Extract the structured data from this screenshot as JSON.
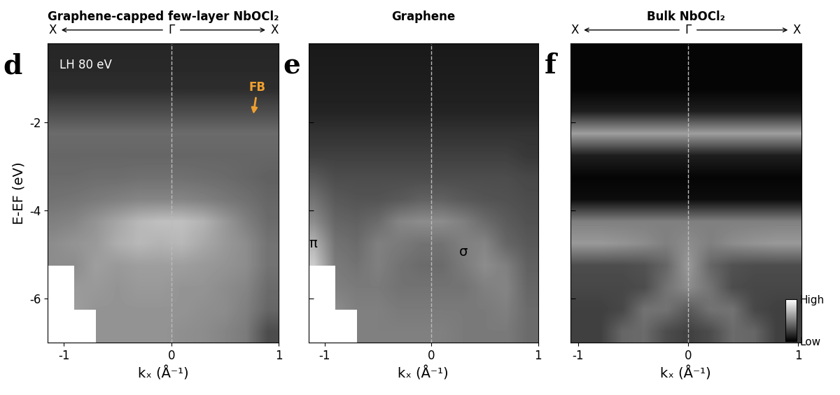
{
  "chart_data": [
    {
      "type": "heatmap",
      "panel": "d",
      "title": "Graphene-capped few-layer NbOCl₂",
      "path_labels": [
        "X",
        "Γ",
        "X"
      ],
      "x_label": "kₓ (Å⁻¹)",
      "y_label": "E-EF (eV)",
      "xlim": [
        -1.15,
        1.0
      ],
      "ylim": [
        -7,
        -0.2
      ],
      "xticks": [
        -1,
        0,
        1
      ],
      "yticks": [
        -6,
        -4,
        -2
      ],
      "color": "gray",
      "guide_line_k": 0,
      "annotations": [
        {
          "text": "LH 80 eV"
        },
        {
          "text": "FB"
        }
      ],
      "k": [
        -1.1,
        -0.9,
        -0.7,
        -0.5,
        -0.3,
        -0.1,
        0.1,
        0.3,
        0.5,
        0.7,
        0.9
      ],
      "energies": [
        -0.25,
        -0.75,
        -1.25,
        -1.75,
        -2.25,
        -2.75,
        -3.25,
        -3.75,
        -4.25,
        -4.75,
        -5.25,
        -5.75,
        -6.25,
        -6.75
      ],
      "intensity": [
        [
          0.15,
          0.15,
          0.15,
          0.15,
          0.15,
          0.15,
          0.15,
          0.15,
          0.15,
          0.15,
          0.15
        ],
        [
          0.16,
          0.16,
          0.16,
          0.16,
          0.16,
          0.16,
          0.16,
          0.16,
          0.16,
          0.16,
          0.16
        ],
        [
          0.18,
          0.18,
          0.18,
          0.18,
          0.18,
          0.18,
          0.18,
          0.18,
          0.18,
          0.18,
          0.18
        ],
        [
          0.3,
          0.3,
          0.3,
          0.3,
          0.3,
          0.3,
          0.3,
          0.3,
          0.3,
          0.3,
          0.3
        ],
        [
          0.42,
          0.42,
          0.42,
          0.42,
          0.42,
          0.42,
          0.42,
          0.42,
          0.42,
          0.42,
          0.42
        ],
        [
          0.4,
          0.4,
          0.4,
          0.4,
          0.4,
          0.4,
          0.4,
          0.4,
          0.4,
          0.4,
          0.4
        ],
        [
          0.42,
          0.42,
          0.43,
          0.43,
          0.44,
          0.44,
          0.44,
          0.43,
          0.42,
          0.4,
          0.38
        ],
        [
          0.45,
          0.46,
          0.48,
          0.5,
          0.52,
          0.52,
          0.52,
          0.5,
          0.47,
          0.44,
          0.4
        ],
        [
          0.5,
          0.52,
          0.58,
          0.65,
          0.72,
          0.75,
          0.75,
          0.7,
          0.6,
          0.5,
          0.42
        ],
        [
          0.55,
          0.58,
          0.6,
          0.68,
          0.72,
          0.7,
          0.72,
          0.66,
          0.6,
          0.55,
          0.45
        ],
        [
          0.55,
          0.55,
          0.62,
          0.6,
          0.62,
          0.62,
          0.62,
          0.6,
          0.58,
          0.55,
          0.45
        ],
        [
          null,
          0.6,
          0.6,
          0.58,
          0.6,
          0.6,
          0.58,
          0.58,
          0.55,
          0.52,
          0.42
        ],
        [
          null,
          0.62,
          0.58,
          0.58,
          0.58,
          0.58,
          0.58,
          0.56,
          0.55,
          0.5,
          0.4
        ],
        [
          null,
          null,
          0.58,
          0.58,
          0.58,
          0.58,
          0.56,
          0.55,
          0.52,
          0.48,
          0.3
        ]
      ]
    },
    {
      "type": "heatmap",
      "panel": "e",
      "title": "Graphene",
      "x_label": "kₓ (Å⁻¹)",
      "xlim": [
        -1.15,
        1.0
      ],
      "ylim": [
        -7,
        -0.2
      ],
      "xticks": [
        -1,
        0,
        1
      ],
      "yticks": [
        -6,
        -4,
        -2
      ],
      "tick_labels": "x",
      "color": "gray",
      "guide_line_k": 0,
      "annotations": [
        {
          "text": "π"
        },
        {
          "text": "σ"
        }
      ],
      "k": [
        -1.1,
        -0.9,
        -0.7,
        -0.5,
        -0.3,
        -0.1,
        0.1,
        0.3,
        0.5,
        0.7,
        0.9
      ],
      "energies": [
        -0.25,
        -0.75,
        -1.25,
        -1.75,
        -2.25,
        -2.75,
        -3.25,
        -3.75,
        -4.25,
        -4.75,
        -5.25,
        -5.75,
        -6.25,
        -6.75
      ],
      "intensity": [
        [
          0.1,
          0.1,
          0.1,
          0.1,
          0.1,
          0.1,
          0.1,
          0.1,
          0.1,
          0.1,
          0.1
        ],
        [
          0.11,
          0.11,
          0.11,
          0.11,
          0.11,
          0.11,
          0.11,
          0.11,
          0.11,
          0.11,
          0.11
        ],
        [
          0.12,
          0.12,
          0.12,
          0.12,
          0.12,
          0.12,
          0.12,
          0.12,
          0.12,
          0.12,
          0.12
        ],
        [
          0.14,
          0.14,
          0.14,
          0.14,
          0.14,
          0.14,
          0.14,
          0.14,
          0.14,
          0.14,
          0.14
        ],
        [
          0.2,
          0.2,
          0.2,
          0.2,
          0.2,
          0.2,
          0.2,
          0.2,
          0.2,
          0.2,
          0.2
        ],
        [
          0.25,
          0.25,
          0.25,
          0.25,
          0.25,
          0.25,
          0.25,
          0.25,
          0.25,
          0.25,
          0.22
        ],
        [
          0.35,
          0.3,
          0.3,
          0.3,
          0.3,
          0.3,
          0.3,
          0.3,
          0.3,
          0.3,
          0.28
        ],
        [
          0.45,
          0.35,
          0.33,
          0.33,
          0.35,
          0.38,
          0.38,
          0.35,
          0.33,
          0.32,
          0.3
        ],
        [
          0.55,
          0.4,
          0.38,
          0.42,
          0.52,
          0.55,
          0.55,
          0.5,
          0.42,
          0.36,
          0.32
        ],
        [
          0.7,
          0.45,
          0.42,
          0.5,
          0.48,
          0.45,
          0.45,
          0.5,
          0.52,
          0.4,
          0.35
        ],
        [
          0.8,
          0.48,
          0.45,
          0.5,
          0.45,
          0.42,
          0.42,
          0.48,
          0.55,
          0.5,
          0.38
        ],
        [
          null,
          0.5,
          0.48,
          0.48,
          0.45,
          0.45,
          0.45,
          0.45,
          0.5,
          0.52,
          0.4
        ],
        [
          null,
          0.55,
          0.5,
          0.5,
          0.48,
          0.48,
          0.48,
          0.48,
          0.48,
          0.5,
          0.42
        ],
        [
          null,
          null,
          0.5,
          0.5,
          0.5,
          0.5,
          0.5,
          0.48,
          0.48,
          0.48,
          0.42
        ]
      ]
    },
    {
      "type": "heatmap",
      "panel": "f",
      "title": "Bulk NbOCl₂",
      "path_labels": [
        "X",
        "Γ",
        "X"
      ],
      "x_label": "kₓ (Å⁻¹)",
      "xlim": [
        -1.07,
        1.03
      ],
      "ylim": [
        -7,
        -0.2
      ],
      "xticks": [
        -1,
        0,
        1
      ],
      "yticks": [
        -6,
        -4,
        -2
      ],
      "tick_labels": "x",
      "color": "gray",
      "guide_line_k": 0,
      "colorbar": {
        "range": [
          0,
          1
        ],
        "ticks": [
          {
            "value": 0,
            "label": "Low"
          },
          {
            "value": 1,
            "label": "High"
          }
        ]
      },
      "k": [
        -1.0,
        -0.8,
        -0.6,
        -0.4,
        -0.2,
        0.0,
        0.2,
        0.4,
        0.6,
        0.8,
        1.0
      ],
      "energies": [
        -0.25,
        -0.75,
        -1.25,
        -1.75,
        -2.25,
        -2.75,
        -3.25,
        -3.75,
        -4.25,
        -4.75,
        -5.25,
        -5.75,
        -6.25,
        -6.75
      ],
      "intensity": [
        [
          0.02,
          0.02,
          0.02,
          0.02,
          0.02,
          0.02,
          0.02,
          0.02,
          0.02,
          0.02,
          0.02
        ],
        [
          0.02,
          0.02,
          0.02,
          0.02,
          0.02,
          0.02,
          0.02,
          0.02,
          0.02,
          0.02,
          0.02
        ],
        [
          0.02,
          0.02,
          0.02,
          0.02,
          0.02,
          0.02,
          0.02,
          0.02,
          0.02,
          0.02,
          0.02
        ],
        [
          0.12,
          0.12,
          0.12,
          0.12,
          0.12,
          0.12,
          0.12,
          0.12,
          0.12,
          0.12,
          0.12
        ],
        [
          0.62,
          0.62,
          0.62,
          0.62,
          0.62,
          0.62,
          0.62,
          0.62,
          0.62,
          0.62,
          0.62
        ],
        [
          0.12,
          0.12,
          0.12,
          0.12,
          0.12,
          0.12,
          0.12,
          0.12,
          0.12,
          0.12,
          0.12
        ],
        [
          0.02,
          0.02,
          0.02,
          0.02,
          0.02,
          0.02,
          0.02,
          0.02,
          0.02,
          0.02,
          0.02
        ],
        [
          0.05,
          0.05,
          0.05,
          0.05,
          0.05,
          0.05,
          0.05,
          0.05,
          0.05,
          0.05,
          0.05
        ],
        [
          0.5,
          0.5,
          0.5,
          0.5,
          0.5,
          0.5,
          0.5,
          0.5,
          0.5,
          0.5,
          0.5
        ],
        [
          0.6,
          0.6,
          0.58,
          0.55,
          0.5,
          0.55,
          0.5,
          0.55,
          0.58,
          0.6,
          0.6
        ],
        [
          0.3,
          0.3,
          0.3,
          0.32,
          0.4,
          0.6,
          0.4,
          0.32,
          0.3,
          0.3,
          0.3
        ],
        [
          0.28,
          0.28,
          0.28,
          0.3,
          0.45,
          0.55,
          0.45,
          0.3,
          0.28,
          0.28,
          0.28
        ],
        [
          0.25,
          0.25,
          0.28,
          0.45,
          0.45,
          0.35,
          0.45,
          0.45,
          0.28,
          0.25,
          0.25
        ],
        [
          0.25,
          0.25,
          0.4,
          0.42,
          0.3,
          0.25,
          0.3,
          0.42,
          0.4,
          0.25,
          0.25
        ]
      ]
    }
  ]
}
